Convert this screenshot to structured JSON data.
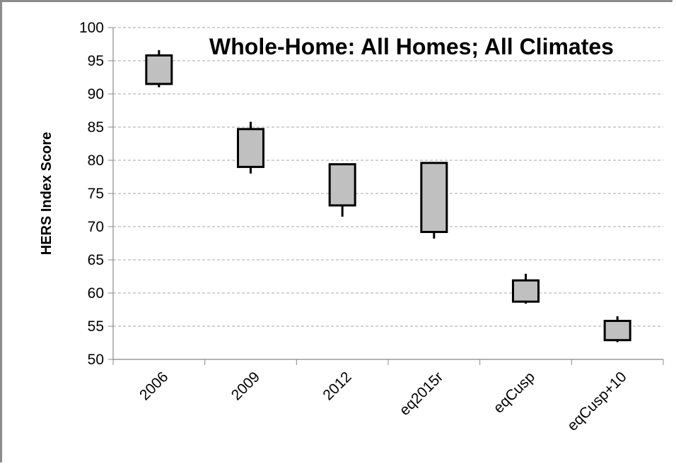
{
  "chart_data": {
    "type": "candlestick",
    "title": "Whole-Home: All Homes; All Climates",
    "xlabel": "",
    "ylabel": "HERS Index Score",
    "ylim": [
      50,
      100
    ],
    "yticks": [
      50,
      55,
      60,
      65,
      70,
      75,
      80,
      85,
      90,
      95,
      100
    ],
    "grid": "horizontal dashed",
    "categories": [
      "2006",
      "2009",
      "2012",
      "eq2015r",
      "eqCusp",
      "eqCusp+10"
    ],
    "series": [
      {
        "box_low": [
          91.5,
          79.0,
          73.2,
          69.2,
          58.7,
          52.9
        ],
        "box_high": [
          95.8,
          84.7,
          79.4,
          79.6,
          61.9,
          55.8
        ],
        "whisker_low": [
          91.0,
          78.0,
          71.5,
          68.2,
          58.4,
          52.6
        ],
        "whisker_high": [
          96.6,
          85.8,
          79.4,
          79.6,
          62.9,
          56.5
        ]
      }
    ],
    "colors": {
      "box_fill": "#c0c0c0",
      "box_stroke": "#000000",
      "grid": "#a6a6a6",
      "frame": "#8c8c8c"
    }
  }
}
